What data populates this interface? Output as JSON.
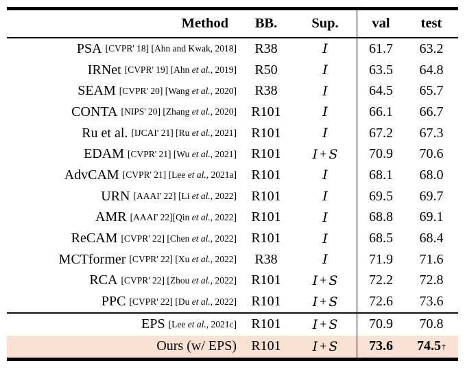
{
  "table": {
    "highlight_color": "#f9e2d4",
    "header": {
      "method": "Method",
      "bb": "BB.",
      "sup": "Sup.",
      "val": "val",
      "test": "test"
    },
    "rows": [
      {
        "name": "PSA",
        "tag": "[CVPR' 18] [Ahn and Kwak, 2018]",
        "bb": "R38",
        "sup": "I",
        "val": "61.7",
        "test": "63.2",
        "bold": false,
        "highlight": false,
        "dagger": ""
      },
      {
        "name": "IRNet",
        "tag": "[CVPR' 19] [Ahn et al., 2019]",
        "bb": "R50",
        "sup": "I",
        "val": "63.5",
        "test": "64.8",
        "bold": false,
        "highlight": false,
        "dagger": ""
      },
      {
        "name": "SEAM",
        "tag": "[CVPR' 20] [Wang et al., 2020]",
        "bb": "R38",
        "sup": "I",
        "val": "64.5",
        "test": "65.7",
        "bold": false,
        "highlight": false,
        "dagger": ""
      },
      {
        "name": "CONTA",
        "tag": "[NIPS' 20] [Zhang et al., 2020]",
        "bb": "R101",
        "sup": "I",
        "val": "66.1",
        "test": "66.7",
        "bold": false,
        "highlight": false,
        "dagger": ""
      },
      {
        "name": "Ru et al.",
        "tag": "[IJCAI' 21] [Ru et al., 2021]",
        "bb": "R101",
        "sup": "I",
        "val": "67.2",
        "test": "67.3",
        "bold": false,
        "highlight": false,
        "dagger": ""
      },
      {
        "name": "EDAM",
        "tag": "[CVPR' 21] [Wu et al., 2021]",
        "bb": "R101",
        "sup": "I + S",
        "val": "70.9",
        "test": "70.6",
        "bold": false,
        "highlight": false,
        "dagger": ""
      },
      {
        "name": "AdvCAM",
        "tag": "[CVPR' 21] [Lee et al., 2021a]",
        "bb": "R101",
        "sup": "I",
        "val": "68.1",
        "test": "68.0",
        "bold": false,
        "highlight": false,
        "dagger": ""
      },
      {
        "name": "URN",
        "tag": "[AAAI' 22] [Li et al., 2022]",
        "bb": "R101",
        "sup": "I",
        "val": "69.5",
        "test": "69.7",
        "bold": false,
        "highlight": false,
        "dagger": ""
      },
      {
        "name": "AMR",
        "tag": "[AAAI' 22][Qin et al., 2022]",
        "bb": "R101",
        "sup": "I",
        "val": "68.8",
        "test": "69.1",
        "bold": false,
        "highlight": false,
        "dagger": ""
      },
      {
        "name": "ReCAM",
        "tag": "[CVPR' 22] [Chen et al., 2022]",
        "bb": "R101",
        "sup": "I",
        "val": "68.5",
        "test": "68.4",
        "bold": false,
        "highlight": false,
        "dagger": ""
      },
      {
        "name": "MCTformer",
        "tag": "[CVPR' 22] [Xu et al., 2022]",
        "bb": "R38",
        "sup": "I",
        "val": "71.9",
        "test": "71.6",
        "bold": false,
        "highlight": false,
        "dagger": ""
      },
      {
        "name": "RCA",
        "tag": "[CVPR' 22] [Zhou et al., 2022]",
        "bb": "R101",
        "sup": "I + S",
        "val": "72.2",
        "test": "72.8",
        "bold": false,
        "highlight": false,
        "dagger": ""
      },
      {
        "name": "PPC",
        "tag": "[CVPR' 22] [Du et al., 2022]",
        "bb": "R101",
        "sup": "I + S",
        "val": "72.6",
        "test": "73.6",
        "bold": false,
        "highlight": false,
        "dagger": ""
      }
    ],
    "bottom_rows": [
      {
        "name": "EPS",
        "tag": "[Lee et al., 2021c]",
        "bb": "R101",
        "sup": "I + S",
        "val": "70.9",
        "test": "70.8",
        "bold": false,
        "highlight": false,
        "dagger": ""
      },
      {
        "name": "Ours (w/ EPS)",
        "tag": "",
        "bb": "R101",
        "sup": "I + S",
        "val": "73.6",
        "test": "74.5",
        "bold": true,
        "highlight": true,
        "dagger": "†"
      }
    ]
  }
}
